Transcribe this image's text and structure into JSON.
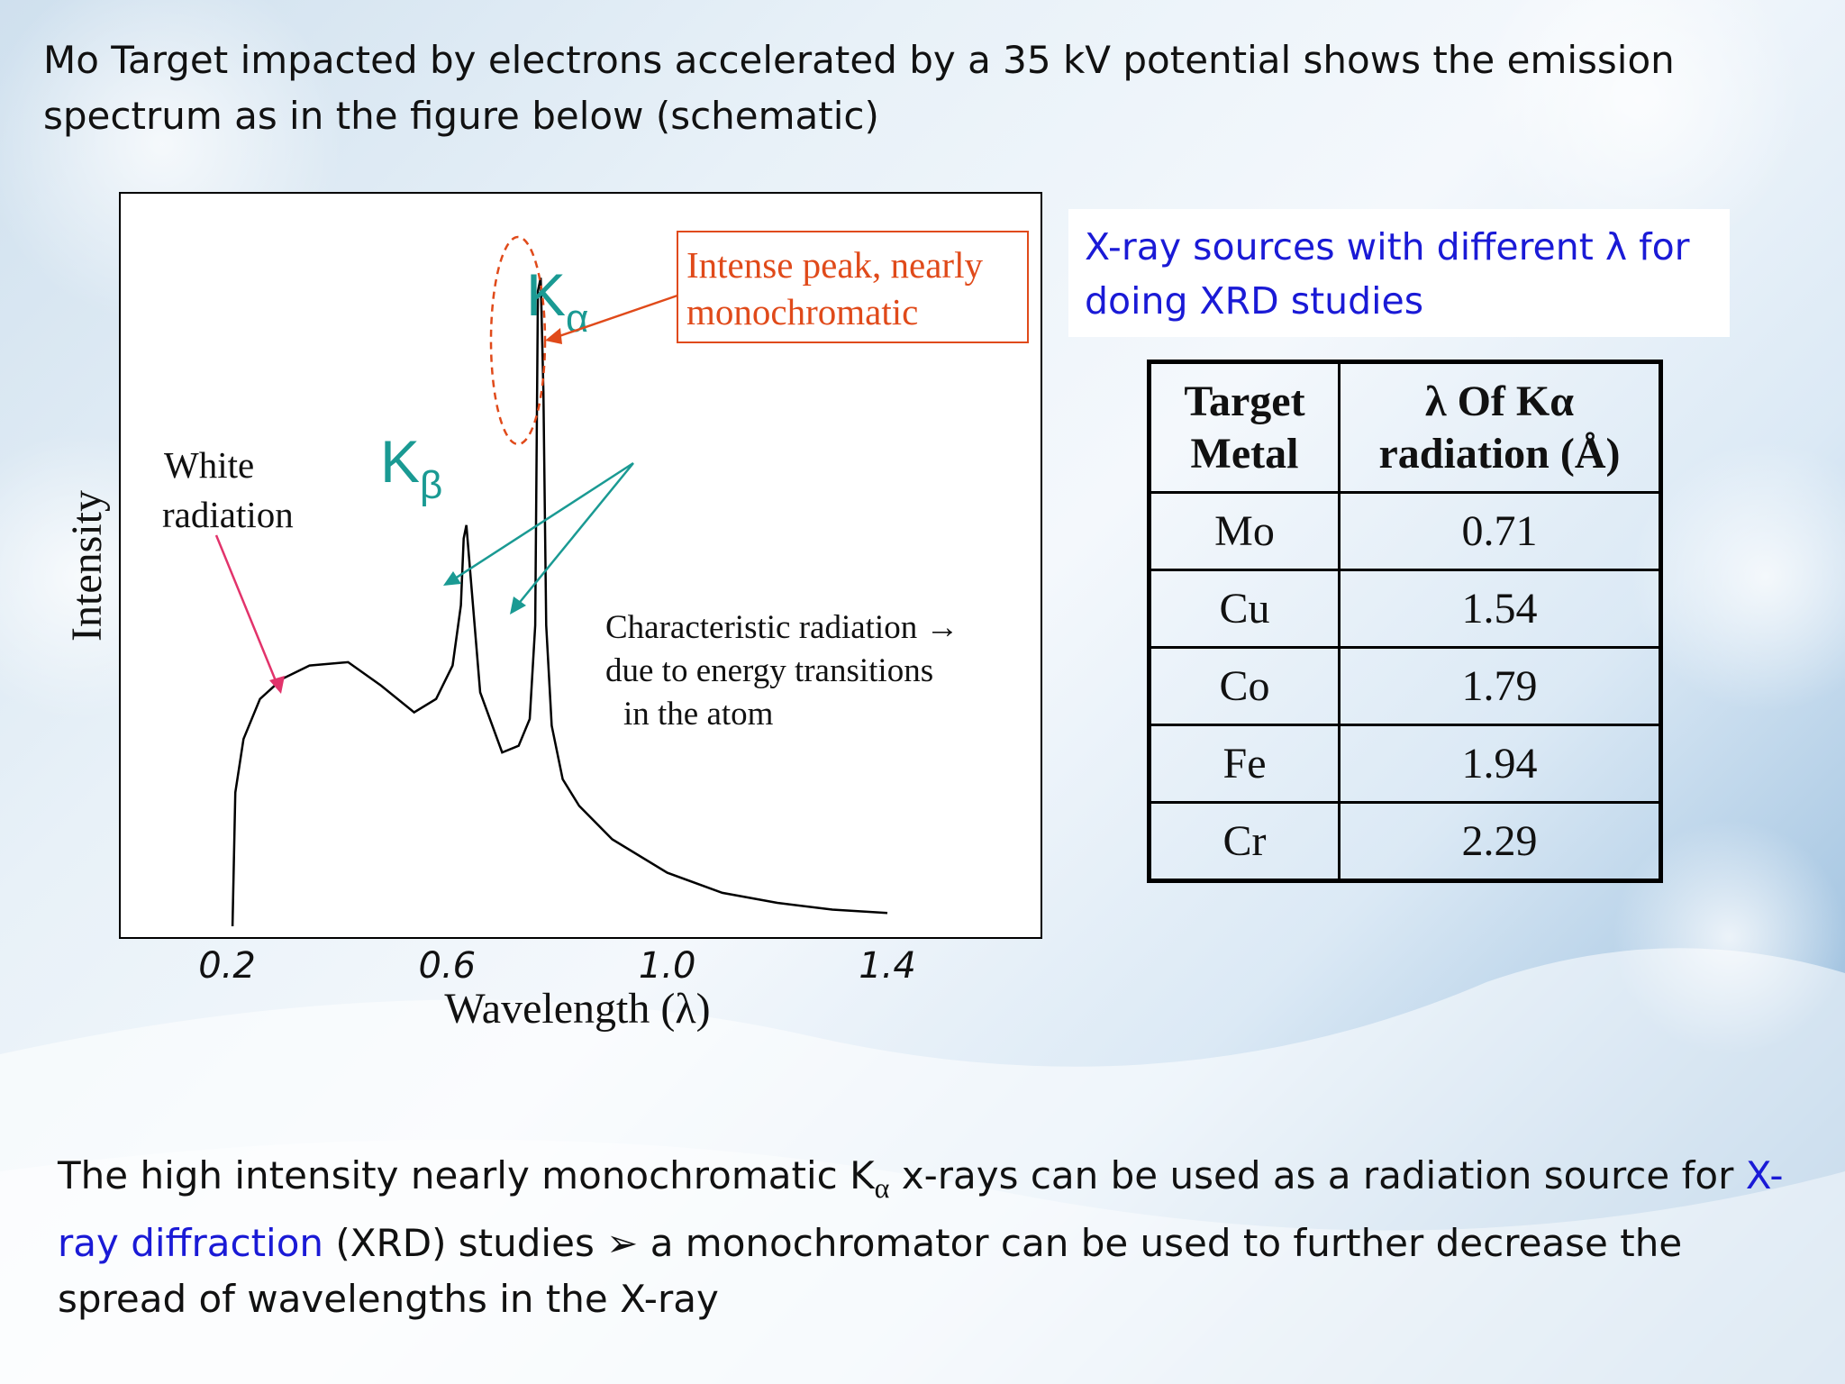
{
  "slide": {
    "intro_text": "Mo Target impacted by electrons accelerated by a 35 kV potential shows the emission spectrum as in the figure below (schematic)",
    "xray_sources_text": "X-ray sources with different λ for doing XRD studies",
    "bottom_text": {
      "part1": "The high intensity nearly monochromatic K",
      "alpha_sub": "α",
      "part2": " x-rays can be used as a radiation source for ",
      "link": "X-ray diffraction",
      "part3": " (XRD) studies ➢ a monochromator can be used to further decrease the spread of wavelengths in the X-ray"
    }
  },
  "chart_data": {
    "type": "line",
    "xlabel": "Wavelength (λ)",
    "ylabel": "Intensity",
    "x_ticks": [
      "0.2",
      "0.6",
      "1.0",
      "1.4"
    ],
    "xlim": [
      0.2,
      1.4
    ],
    "series": [
      {
        "x": [
          0.21,
          0.215,
          0.23,
          0.26,
          0.3,
          0.35,
          0.42,
          0.48,
          0.54,
          0.58,
          0.61,
          0.625,
          0.63,
          0.635,
          0.645,
          0.66,
          0.7,
          0.73,
          0.75,
          0.76,
          0.765,
          0.77,
          0.775,
          0.78,
          0.79,
          0.81,
          0.84,
          0.9,
          1.0,
          1.1,
          1.2,
          1.3,
          1.4
        ],
        "y": [
          0,
          0.2,
          0.28,
          0.34,
          0.37,
          0.39,
          0.395,
          0.36,
          0.32,
          0.34,
          0.39,
          0.48,
          0.58,
          0.6,
          0.5,
          0.35,
          0.26,
          0.27,
          0.31,
          0.45,
          0.95,
          0.97,
          0.8,
          0.45,
          0.3,
          0.22,
          0.18,
          0.13,
          0.08,
          0.05,
          0.035,
          0.025,
          0.02
        ]
      }
    ],
    "annotations": {
      "k_alpha": {
        "main": "K",
        "sub": "α"
      },
      "k_beta": {
        "main": "K",
        "sub": "β"
      },
      "intense_peak": [
        "Intense peak, nearly",
        "monochromatic"
      ],
      "white_radiation": [
        "White",
        "radiation"
      ],
      "characteristic": [
        "Characteristic radiation →",
        "due to energy transitions",
        "in the atom"
      ]
    }
  },
  "table": {
    "headers": [
      [
        "Target",
        "Metal"
      ],
      [
        "λ Of Kα",
        "radiation (Å)"
      ]
    ],
    "rows": [
      [
        "Mo",
        "0.71"
      ],
      [
        "Cu",
        "1.54"
      ],
      [
        "Co",
        "1.79"
      ],
      [
        "Fe",
        "1.94"
      ],
      [
        "Cr",
        "2.29"
      ]
    ]
  },
  "colors": {
    "accent_blue": "#1a1ad6",
    "annotation_red": "#e04a1a",
    "teal": "#1a9a93",
    "pink": "#e2336b"
  }
}
